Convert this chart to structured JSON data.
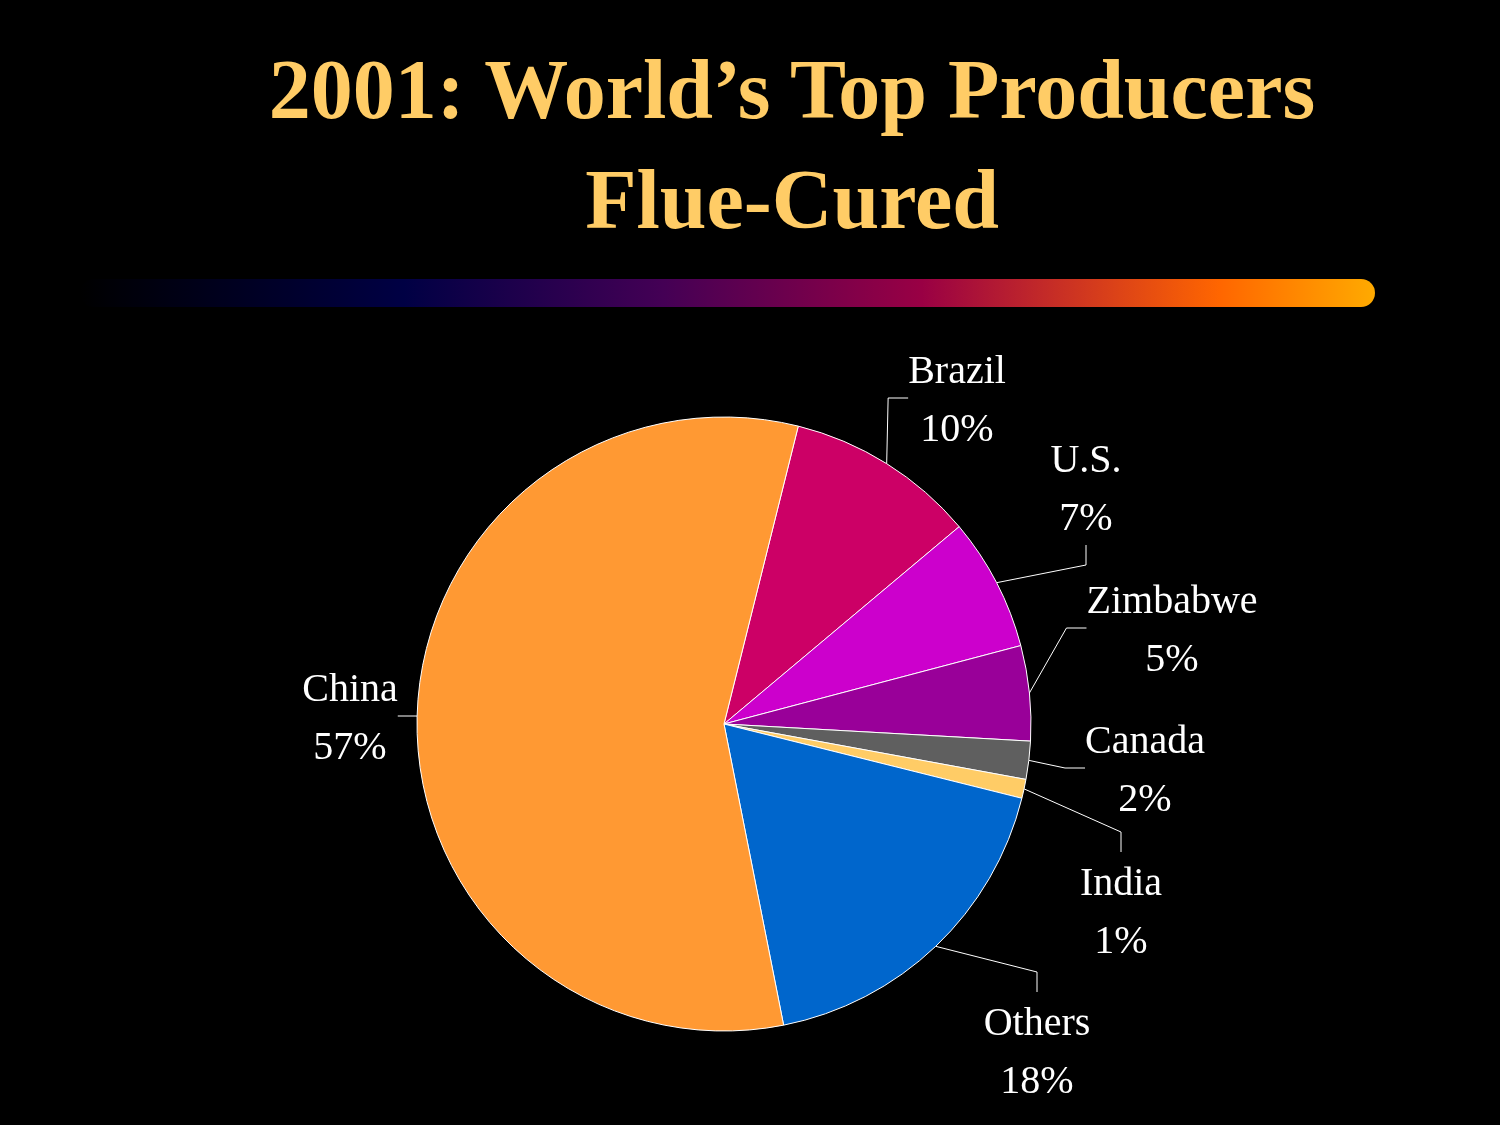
{
  "chart_data": {
    "type": "pie",
    "title": "2001: World’s Top Producers",
    "subtitle": "Flue-Cured",
    "categories": [
      "Brazil",
      "U.S.",
      "Zimbabwe",
      "Canada",
      "India",
      "Others",
      "China"
    ],
    "values": [
      10,
      7,
      5,
      2,
      1,
      18,
      57
    ],
    "value_labels": [
      "10%",
      "7%",
      "5%",
      "2%",
      "1%",
      "18%",
      "57%"
    ],
    "colors": [
      "#cc0066",
      "#cc00cc",
      "#990099",
      "#5f5f5f",
      "#ffcc66",
      "#0066cc",
      "#ff9933"
    ],
    "legend": false
  }
}
